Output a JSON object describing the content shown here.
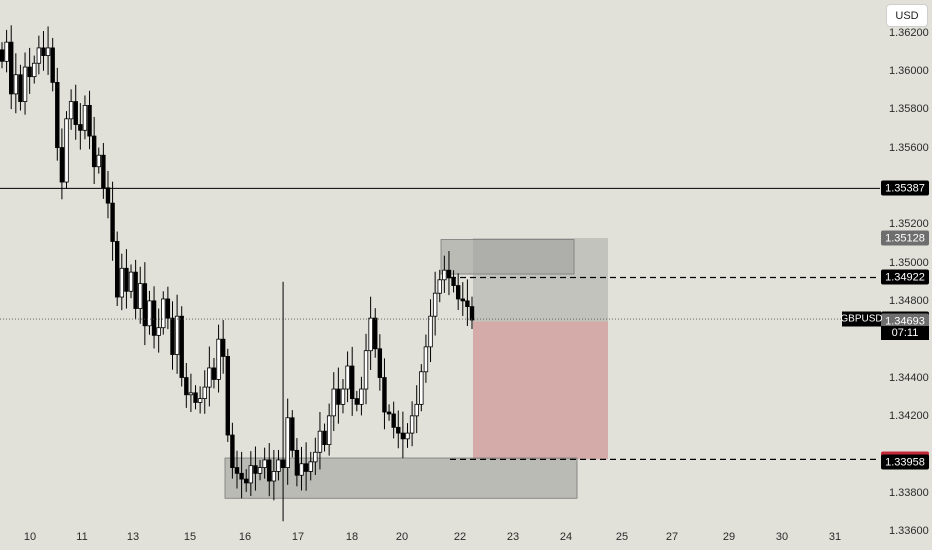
{
  "currency_button": "USD",
  "symbol": "GBPUSD",
  "countdown": "07:11",
  "colors": {
    "background": "#e1e1da",
    "candle": "#000000",
    "entry_line": "#000000",
    "stop_zone": "#d4a5a3",
    "target_zone": "#bdbdb9",
    "order_block": "#9d9d99",
    "label_dark": "#000000",
    "label_grey": "#6e6e6e",
    "label_red": "#c22a3a"
  },
  "price_axis_ticks": [
    "1.36200",
    "1.36000",
    "1.35800",
    "1.35600",
    "1.35200",
    "1.35000",
    "1.34800",
    "1.34400",
    "1.34200",
    "1.33800",
    "1.33600"
  ],
  "price_labels": [
    {
      "name": "level-1-35387",
      "value": "1.35387",
      "price": 1.35387,
      "style": "dark"
    },
    {
      "name": "level-1-35128",
      "value": "1.35128",
      "price": 1.35128,
      "style": "grey"
    },
    {
      "name": "level-1-34922",
      "value": "1.34922",
      "price": 1.34922,
      "style": "dark"
    },
    {
      "name": "level-1-34705",
      "value": "1.34705",
      "price": 1.34705,
      "style": "dark"
    },
    {
      "name": "level-1-34693",
      "value": "1.34693",
      "price": 1.34693,
      "style": "grey"
    },
    {
      "name": "level-1-33973",
      "value": "1.33973",
      "price": 1.33973,
      "style": "red"
    },
    {
      "name": "level-1-33958",
      "value": "1.33958",
      "price": 1.33958,
      "style": "dark"
    }
  ],
  "date_ticks": [
    "10",
    "11",
    "13",
    "15",
    "16",
    "17",
    "18",
    "20",
    "22",
    "23",
    "24",
    "25",
    "27",
    "29",
    "30",
    "31"
  ],
  "chart_data": {
    "type": "candlestick",
    "title": "",
    "symbol": "GBPUSD",
    "y_range": [
      1.335,
      1.3637
    ],
    "date_ticks": [
      "10",
      "11",
      "13",
      "15",
      "16",
      "17",
      "18",
      "20",
      "22",
      "23",
      "24",
      "25",
      "27",
      "29",
      "30",
      "31"
    ],
    "close_path": [
      1.3605,
      1.3615,
      1.3588,
      1.3598,
      1.3584,
      1.3602,
      1.3597,
      1.3604,
      1.3612,
      1.3608,
      1.3612,
      1.3594,
      1.356,
      1.3542,
      1.3575,
      1.3584,
      1.3572,
      1.3569,
      1.3582,
      1.3566,
      1.355,
      1.3556,
      1.3539,
      1.3531,
      1.3511,
      1.3482,
      1.3497,
      1.3485,
      1.3495,
      1.3476,
      1.3489,
      1.3467,
      1.348,
      1.3462,
      1.3466,
      1.3481,
      1.3471,
      1.3452,
      1.3472,
      1.344,
      1.3431,
      1.3432,
      1.3427,
      1.3429,
      1.3435,
      1.3445,
      1.3439,
      1.346,
      1.3451,
      1.341,
      1.3393,
      1.339,
      1.3387,
      1.3385,
      1.3394,
      1.339,
      1.3393,
      1.3397,
      1.3386,
      1.3391,
      1.3397,
      1.3393,
      1.3419,
      1.3402,
      1.3389,
      1.3395,
      1.3391,
      1.3396,
      1.3401,
      1.3412,
      1.3405,
      1.342,
      1.3434,
      1.3426,
      1.3434,
      1.3446,
      1.3429,
      1.3426,
      1.3434,
      1.3454,
      1.3471,
      1.3455,
      1.344,
      1.3422,
      1.3421,
      1.3414,
      1.3411,
      1.3408,
      1.3411,
      1.342,
      1.3426,
      1.3443,
      1.3456,
      1.3472,
      1.3484,
      1.3491,
      1.3496,
      1.3492,
      1.3488,
      1.3481,
      1.348,
      1.3477,
      1.347
    ],
    "horizontal_lines": [
      {
        "price": 1.35387,
        "style": "solid"
      },
      {
        "price": 1.34922,
        "style": "dashed"
      },
      {
        "price": 1.33973,
        "style": "dashed"
      },
      {
        "price": 1.34705,
        "style": "dotted"
      }
    ],
    "position": {
      "entry": 1.34693,
      "target": 1.35128,
      "stop": 1.33973
    },
    "zones": [
      {
        "name": "supply-zone",
        "top": 1.3512,
        "bottom": 1.3494
      },
      {
        "name": "demand-zone",
        "top": 1.3398,
        "bottom": 1.3377
      }
    ]
  }
}
